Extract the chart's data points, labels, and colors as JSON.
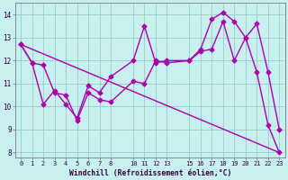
{
  "xlabel": "Windchill (Refroidissement éolien,°C)",
  "bg_color": "#c8f0f0",
  "line_color": "#aa00aa",
  "grid_color": "#99cccc",
  "xlim": [
    -0.5,
    23.5
  ],
  "ylim": [
    7.8,
    14.5
  ],
  "yticks": [
    8,
    9,
    10,
    11,
    12,
    13,
    14
  ],
  "xticks": [
    0,
    1,
    2,
    3,
    4,
    5,
    6,
    7,
    8,
    10,
    11,
    12,
    13,
    15,
    16,
    17,
    18,
    19,
    20,
    21,
    22,
    23
  ],
  "line1_x": [
    0,
    1,
    2,
    3,
    4,
    5,
    6,
    7,
    8,
    10,
    11,
    12,
    13,
    15,
    16,
    17,
    18,
    19,
    20,
    21,
    22,
    23
  ],
  "line1_y": [
    12.7,
    11.9,
    11.8,
    10.6,
    10.5,
    9.4,
    10.6,
    10.3,
    10.2,
    11.1,
    11.0,
    12.0,
    11.9,
    12.0,
    12.4,
    12.5,
    13.7,
    12.0,
    13.0,
    13.6,
    11.5,
    9.0
  ],
  "line2_x": [
    0,
    1,
    2,
    3,
    4,
    5,
    6,
    7,
    8,
    10,
    11,
    12,
    13,
    15,
    16,
    17,
    18,
    19,
    20,
    21,
    22,
    23
  ],
  "line2_y": [
    12.7,
    11.9,
    10.1,
    10.7,
    10.1,
    9.5,
    10.9,
    10.6,
    11.3,
    12.0,
    13.5,
    11.9,
    12.0,
    12.0,
    12.5,
    13.8,
    14.1,
    13.7,
    13.0,
    11.5,
    9.2,
    8.0
  ],
  "line3_x": [
    0,
    23
  ],
  "line3_y": [
    12.7,
    8.0
  ],
  "marker": "D",
  "markersize": 2.5,
  "linewidth": 1.0
}
